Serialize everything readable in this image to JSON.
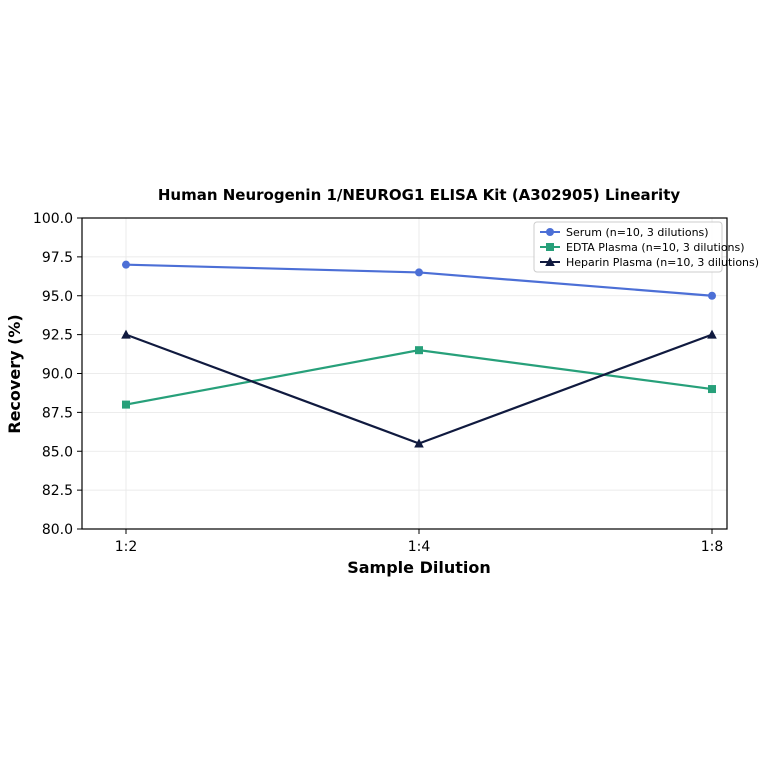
{
  "chart_data": {
    "type": "line",
    "title": "Human Neurogenin 1/NEUROG1 ELISA Kit (A302905) Linearity",
    "xlabel": "Sample Dilution",
    "ylabel": "Recovery (%)",
    "categories": [
      "1:2",
      "1:4",
      "1:8"
    ],
    "ylim": [
      80.0,
      100.0
    ],
    "yticks": [
      "80.0",
      "82.5",
      "85.0",
      "87.5",
      "90.0",
      "92.5",
      "95.0",
      "97.5",
      "100.0"
    ],
    "grid": true,
    "legend_position": "top-right",
    "series": [
      {
        "name": "Serum (n=10, 3 dilutions)",
        "values": [
          97.0,
          96.5,
          95.0
        ],
        "color": "#4c6fd6",
        "marker": "circle"
      },
      {
        "name": "EDTA Plasma (n=10, 3 dilutions)",
        "values": [
          88.0,
          91.5,
          89.0
        ],
        "color": "#27a07a",
        "marker": "square"
      },
      {
        "name": "Heparin Plasma (n=10, 3 dilutions)",
        "values": [
          92.5,
          85.5,
          92.5
        ],
        "color": "#101a3f",
        "marker": "triangle"
      }
    ]
  }
}
